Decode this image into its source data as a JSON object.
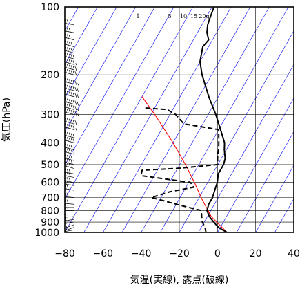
{
  "chart_data": {
    "type": "line",
    "xlabel": "気温(実線), 露点(破線)",
    "ylabel": "気圧(hPa)",
    "xlim": [
      -80,
      40
    ],
    "ylim_pressure": [
      1000,
      100
    ],
    "y_scale": "log",
    "x_ticks": [
      "−80",
      "−60",
      "−40",
      "−20",
      "0",
      "20",
      "40"
    ],
    "x_tick_values": [
      -80,
      -60,
      -40,
      -20,
      0,
      20,
      40
    ],
    "y_ticks": [
      "100",
      "200",
      "300",
      "400",
      "500",
      "600",
      "700",
      "800",
      "900",
      "1000"
    ],
    "y_tick_values": [
      100,
      200,
      300,
      400,
      500,
      600,
      700,
      800,
      900,
      1000
    ],
    "grid": true,
    "mixing_ratio_labels": [
      "1",
      "5",
      "10",
      "15",
      "20g"
    ],
    "mixing_ratio_values": [
      1,
      5,
      10,
      15,
      20
    ],
    "series": [
      {
        "role": "temperature",
        "style": "solid",
        "color": "#000000",
        "points": [
          {
            "p": 1000,
            "t": 5
          },
          {
            "p": 950,
            "t": -1
          },
          {
            "p": 900,
            "t": -5
          },
          {
            "p": 850,
            "t": -9
          },
          {
            "p": 800,
            "t": -12
          },
          {
            "p": 750,
            "t": -13
          },
          {
            "p": 700,
            "t": -13
          },
          {
            "p": 650,
            "t": -14
          },
          {
            "p": 600,
            "t": -15
          },
          {
            "p": 550,
            "t": -17
          },
          {
            "p": 500,
            "t": -17
          },
          {
            "p": 470,
            "t": -18
          },
          {
            "p": 430,
            "t": -21
          },
          {
            "p": 400,
            "t": -23
          },
          {
            "p": 350,
            "t": -29
          },
          {
            "p": 300,
            "t": -36
          },
          {
            "p": 250,
            "t": -45
          },
          {
            "p": 200,
            "t": -55
          },
          {
            "p": 175,
            "t": -60
          },
          {
            "p": 150,
            "t": -63
          },
          {
            "p": 140,
            "t": -62
          },
          {
            "p": 130,
            "t": -65
          },
          {
            "p": 120,
            "t": -67
          },
          {
            "p": 110,
            "t": -68
          },
          {
            "p": 100,
            "t": -69
          }
        ]
      },
      {
        "role": "dewpoint",
        "style": "dashed",
        "color": "#000000",
        "points": [
          {
            "p": 1000,
            "t": -6
          },
          {
            "p": 950,
            "t": -8
          },
          {
            "p": 900,
            "t": -11
          },
          {
            "p": 850,
            "t": -13
          },
          {
            "p": 800,
            "t": -15
          },
          {
            "p": 760,
            "t": -27
          },
          {
            "p": 700,
            "t": -45
          },
          {
            "p": 660,
            "t": -37
          },
          {
            "p": 630,
            "t": -26
          },
          {
            "p": 600,
            "t": -29
          },
          {
            "p": 560,
            "t": -57
          },
          {
            "p": 530,
            "t": -58
          },
          {
            "p": 520,
            "t": -40
          },
          {
            "p": 500,
            "t": -20
          },
          {
            "p": 470,
            "t": -22
          },
          {
            "p": 430,
            "t": -24
          },
          {
            "p": 400,
            "t": -26
          },
          {
            "p": 350,
            "t": -30
          },
          {
            "p": 330,
            "t": -50
          },
          {
            "p": 300,
            "t": -57
          },
          {
            "p": 285,
            "t": -63
          },
          {
            "p": 280,
            "t": -76
          }
        ]
      },
      {
        "role": "parcel",
        "style": "solid",
        "color": "#ff0000",
        "points": [
          {
            "p": 1000,
            "t": 5
          },
          {
            "p": 850,
            "t": -8
          },
          {
            "p": 700,
            "t": -19
          },
          {
            "p": 600,
            "t": -27
          },
          {
            "p": 500,
            "t": -37
          },
          {
            "p": 400,
            "t": -50
          },
          {
            "p": 300,
            "t": -68
          },
          {
            "p": 250,
            "t": -80
          }
        ]
      }
    ],
    "wind_barbs": [
      {
        "p": 1000,
        "dir": 270,
        "kt": 10
      },
      {
        "p": 975,
        "dir": 260,
        "kt": 10
      },
      {
        "p": 950,
        "dir": 250,
        "kt": 15
      },
      {
        "p": 925,
        "dir": 250,
        "kt": 15
      },
      {
        "p": 900,
        "dir": 260,
        "kt": 20
      },
      {
        "p": 875,
        "dir": 260,
        "kt": 20
      },
      {
        "p": 850,
        "dir": 265,
        "kt": 25
      },
      {
        "p": 800,
        "dir": 270,
        "kt": 25
      },
      {
        "p": 775,
        "dir": 270,
        "kt": 25
      },
      {
        "p": 750,
        "dir": 275,
        "kt": 30
      },
      {
        "p": 700,
        "dir": 275,
        "kt": 30
      },
      {
        "p": 650,
        "dir": 280,
        "kt": 35
      },
      {
        "p": 620,
        "dir": 280,
        "kt": 35
      },
      {
        "p": 600,
        "dir": 280,
        "kt": 40
      },
      {
        "p": 570,
        "dir": 280,
        "kt": 40
      },
      {
        "p": 550,
        "dir": 280,
        "kt": 45
      },
      {
        "p": 520,
        "dir": 285,
        "kt": 45
      },
      {
        "p": 500,
        "dir": 285,
        "kt": 50
      },
      {
        "p": 480,
        "dir": 285,
        "kt": 50
      },
      {
        "p": 450,
        "dir": 285,
        "kt": 55
      },
      {
        "p": 430,
        "dir": 285,
        "kt": 55
      },
      {
        "p": 400,
        "dir": 285,
        "kt": 60
      },
      {
        "p": 380,
        "dir": 285,
        "kt": 60
      },
      {
        "p": 350,
        "dir": 285,
        "kt": 65
      },
      {
        "p": 330,
        "dir": 285,
        "kt": 70
      },
      {
        "p": 300,
        "dir": 285,
        "kt": 75
      },
      {
        "p": 285,
        "dir": 285,
        "kt": 75
      },
      {
        "p": 270,
        "dir": 285,
        "kt": 80
      },
      {
        "p": 250,
        "dir": 285,
        "kt": 80
      },
      {
        "p": 235,
        "dir": 285,
        "kt": 80
      },
      {
        "p": 220,
        "dir": 285,
        "kt": 75
      },
      {
        "p": 200,
        "dir": 285,
        "kt": 70
      },
      {
        "p": 190,
        "dir": 285,
        "kt": 70
      },
      {
        "p": 180,
        "dir": 285,
        "kt": 65
      },
      {
        "p": 170,
        "dir": 285,
        "kt": 60
      },
      {
        "p": 160,
        "dir": 285,
        "kt": 55
      },
      {
        "p": 150,
        "dir": 285,
        "kt": 50
      },
      {
        "p": 140,
        "dir": 285,
        "kt": 45
      },
      {
        "p": 130,
        "dir": 280,
        "kt": 40
      },
      {
        "p": 120,
        "dir": 280,
        "kt": 35
      }
    ],
    "colors": {
      "isotherm": "#0000ff",
      "grid": "#000000",
      "parcel": "#ff0000",
      "profile": "#000000"
    }
  }
}
